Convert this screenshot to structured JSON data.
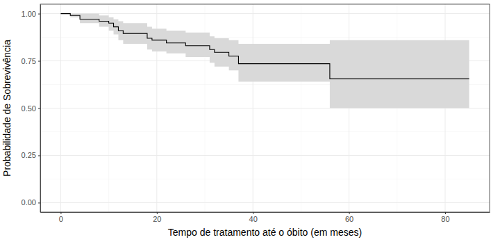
{
  "chart_data": {
    "type": "line",
    "x_label": "Tempo de tratamento até o óbito (em meses)",
    "y_label": "Probabilidade de Sobrevivência",
    "xlim": [
      -4.25,
      89.25
    ],
    "xticks": [
      0,
      20,
      40,
      60,
      80
    ],
    "ylim": [
      -0.05,
      1.05
    ],
    "yticks": [
      {
        "value": 0,
        "label": "0.00"
      },
      {
        "value": 0.25,
        "label": "0.25"
      },
      {
        "value": 0.5,
        "label": "0.50"
      },
      {
        "value": 0.75,
        "label": "0.75"
      },
      {
        "value": 1,
        "label": "1.00"
      }
    ],
    "grid": true,
    "series": [
      {
        "color": "#000000",
        "line_style": "step",
        "x": [
          0,
          2,
          4,
          8,
          10,
          11,
          12,
          13,
          18,
          19,
          22,
          26,
          31,
          32,
          35,
          37,
          56,
          85
        ],
        "values": [
          1.0,
          0.99,
          0.97,
          0.96,
          0.95,
          0.93,
          0.91,
          0.895,
          0.87,
          0.86,
          0.845,
          0.83,
          0.81,
          0.795,
          0.775,
          0.735,
          0.655,
          0.655
        ],
        "lower": [
          1.0,
          0.98,
          0.95,
          0.93,
          0.91,
          0.89,
          0.86,
          0.84,
          0.81,
          0.8,
          0.79,
          0.77,
          0.74,
          0.72,
          0.7,
          0.64,
          0.5,
          0.5
        ],
        "upper": [
          1.0,
          1.0,
          1.0,
          0.99,
          0.98,
          0.97,
          0.96,
          0.95,
          0.93,
          0.92,
          0.91,
          0.9,
          0.88,
          0.87,
          0.86,
          0.84,
          0.86,
          0.86
        ]
      }
    ]
  }
}
